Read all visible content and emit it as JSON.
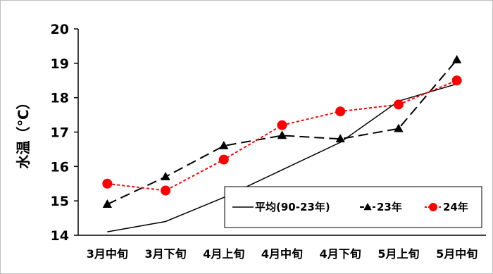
{
  "chart_data": {
    "type": "line",
    "ylabel": "水温（℃）",
    "ylim": [
      14,
      20
    ],
    "yticks": [
      14,
      15,
      16,
      17,
      18,
      19,
      20
    ],
    "categories": [
      "3月中旬",
      "3月下旬",
      "4月上旬",
      "4月中旬",
      "4月下旬",
      "5月上旬",
      "5月中旬"
    ],
    "grid": false,
    "legend_position": "bottom-right",
    "series": [
      {
        "name": "平均(90-23年)",
        "color": "#000000",
        "style": "solid",
        "marker": "none",
        "values": [
          14.1,
          14.4,
          15.1,
          15.9,
          16.7,
          17.9,
          18.4
        ]
      },
      {
        "name": "23年",
        "color": "#000000",
        "style": "dashed",
        "marker": "triangle",
        "values": [
          14.9,
          15.7,
          16.6,
          16.9,
          16.8,
          17.1,
          19.1
        ]
      },
      {
        "name": "24年",
        "color": "#ff0000",
        "style": "dotted",
        "marker": "circle",
        "values": [
          15.5,
          15.3,
          16.2,
          17.2,
          17.6,
          17.8,
          18.5
        ]
      }
    ]
  }
}
